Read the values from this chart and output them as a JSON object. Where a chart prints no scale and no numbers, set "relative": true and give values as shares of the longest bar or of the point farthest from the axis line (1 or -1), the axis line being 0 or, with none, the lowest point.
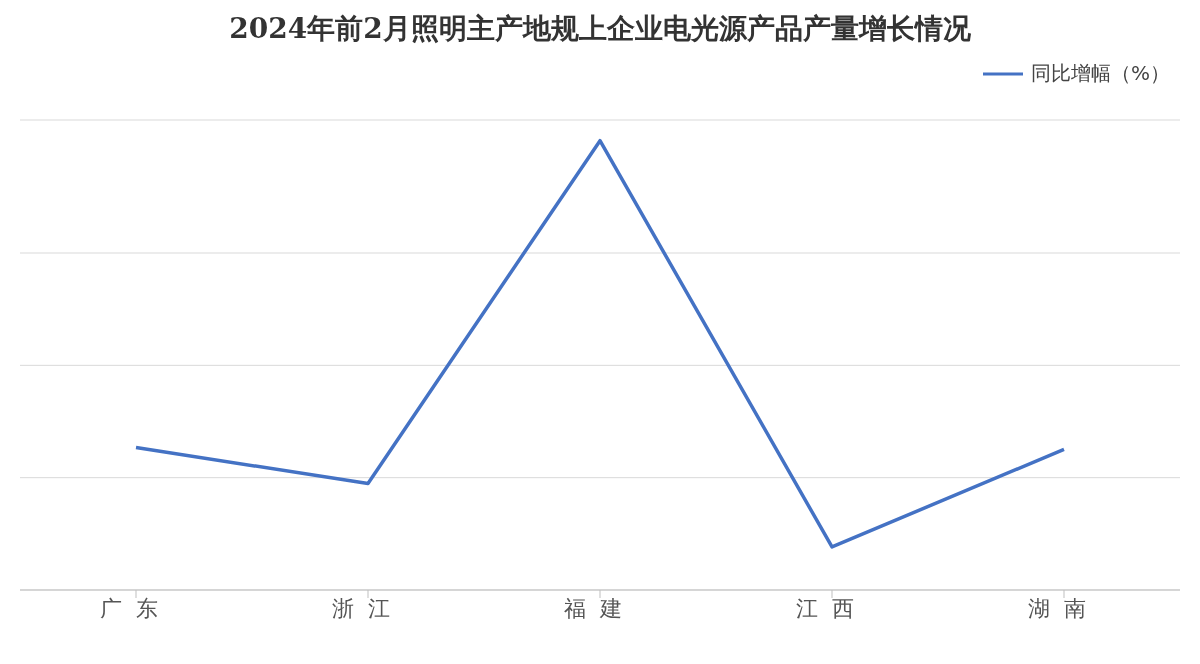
{
  "chart_data": {
    "type": "line",
    "title": "2024年前2月照明主产地规上企业电光源产品产量增长情况",
    "categories": [
      "广东",
      "浙江",
      "福建",
      "江西",
      "湖南"
    ],
    "series": [
      {
        "name": "同比增幅（%）",
        "color": "#4472c4",
        "values": [
          0.317,
          0.237,
          1,
          0.096,
          0.313
        ]
      }
    ],
    "relative": true,
    "grid": "y",
    "legend": "top right",
    "marker": "none",
    "line_style": "solid"
  }
}
